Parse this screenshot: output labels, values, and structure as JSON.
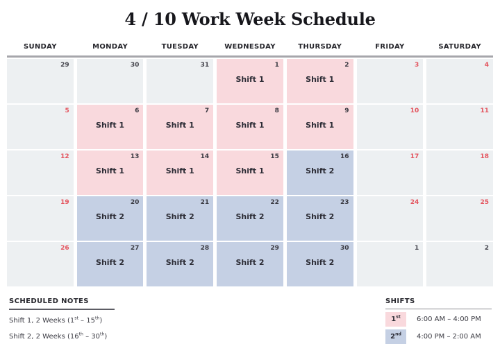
{
  "title": "4 / 10 Work Week Schedule",
  "calendar": {
    "day_headers": [
      "SUNDAY",
      "MONDAY",
      "TUESDAY",
      "WEDNESDAY",
      "THURSDAY",
      "FRIDAY",
      "SATURDAY"
    ],
    "weeks": [
      [
        {
          "date": "29",
          "type": "other"
        },
        {
          "date": "30",
          "type": "other"
        },
        {
          "date": "31",
          "type": "other"
        },
        {
          "date": "1",
          "type": "shift1",
          "label": "Shift 1"
        },
        {
          "date": "2",
          "type": "shift1",
          "label": "Shift 1"
        },
        {
          "date": "3",
          "type": "off"
        },
        {
          "date": "4",
          "type": "off"
        }
      ],
      [
        {
          "date": "5",
          "type": "off"
        },
        {
          "date": "6",
          "type": "shift1",
          "label": "Shift 1"
        },
        {
          "date": "7",
          "type": "shift1",
          "label": "Shift 1"
        },
        {
          "date": "8",
          "type": "shift1",
          "label": "Shift 1"
        },
        {
          "date": "9",
          "type": "shift1",
          "label": "Shift 1"
        },
        {
          "date": "10",
          "type": "off"
        },
        {
          "date": "11",
          "type": "off"
        }
      ],
      [
        {
          "date": "12",
          "type": "off"
        },
        {
          "date": "13",
          "type": "shift1",
          "label": "Shift 1"
        },
        {
          "date": "14",
          "type": "shift1",
          "label": "Shift 1"
        },
        {
          "date": "15",
          "type": "shift1",
          "label": "Shift 1"
        },
        {
          "date": "16",
          "type": "shift2",
          "label": "Shift 2"
        },
        {
          "date": "17",
          "type": "off"
        },
        {
          "date": "18",
          "type": "off"
        }
      ],
      [
        {
          "date": "19",
          "type": "off"
        },
        {
          "date": "20",
          "type": "shift2",
          "label": "Shift 2"
        },
        {
          "date": "21",
          "type": "shift2",
          "label": "Shift 2"
        },
        {
          "date": "22",
          "type": "shift2",
          "label": "Shift 2"
        },
        {
          "date": "23",
          "type": "shift2",
          "label": "Shift 2"
        },
        {
          "date": "24",
          "type": "off"
        },
        {
          "date": "25",
          "type": "off"
        }
      ],
      [
        {
          "date": "26",
          "type": "off"
        },
        {
          "date": "27",
          "type": "shift2",
          "label": "Shift 2"
        },
        {
          "date": "28",
          "type": "shift2",
          "label": "Shift 2"
        },
        {
          "date": "29",
          "type": "shift2",
          "label": "Shift 2"
        },
        {
          "date": "30",
          "type": "shift2",
          "label": "Shift 2"
        },
        {
          "date": "1",
          "type": "other"
        },
        {
          "date": "2",
          "type": "other"
        }
      ]
    ]
  },
  "notes": {
    "heading": "SCHEDULED NOTES",
    "items": [
      {
        "pre": "Shift 1, 2 Weeks (1",
        "sup1": "st",
        "mid": " – 15",
        "sup2": "th",
        "post": ")"
      },
      {
        "pre": "Shift 2, 2 Weeks (16",
        "sup1": "th",
        "mid": " – 30",
        "sup2": "th",
        "post": ")"
      }
    ]
  },
  "legend": {
    "heading": "SHIFTS",
    "items": [
      {
        "num": "1",
        "sup": "st",
        "time": "6:00 AM – 4:00 PM",
        "swatch": "shift1"
      },
      {
        "num": "2",
        "sup": "nd",
        "time": "4:00 PM – 2:00 AM",
        "swatch": "shift2"
      }
    ]
  },
  "colors": {
    "shift1": "#f9d9dd",
    "shift2": "#c5d0e4",
    "empty_cell": "#edf0f2",
    "date_red": "#e4555f",
    "date_dark": "#3a3a42",
    "date_other": "#46464e"
  }
}
